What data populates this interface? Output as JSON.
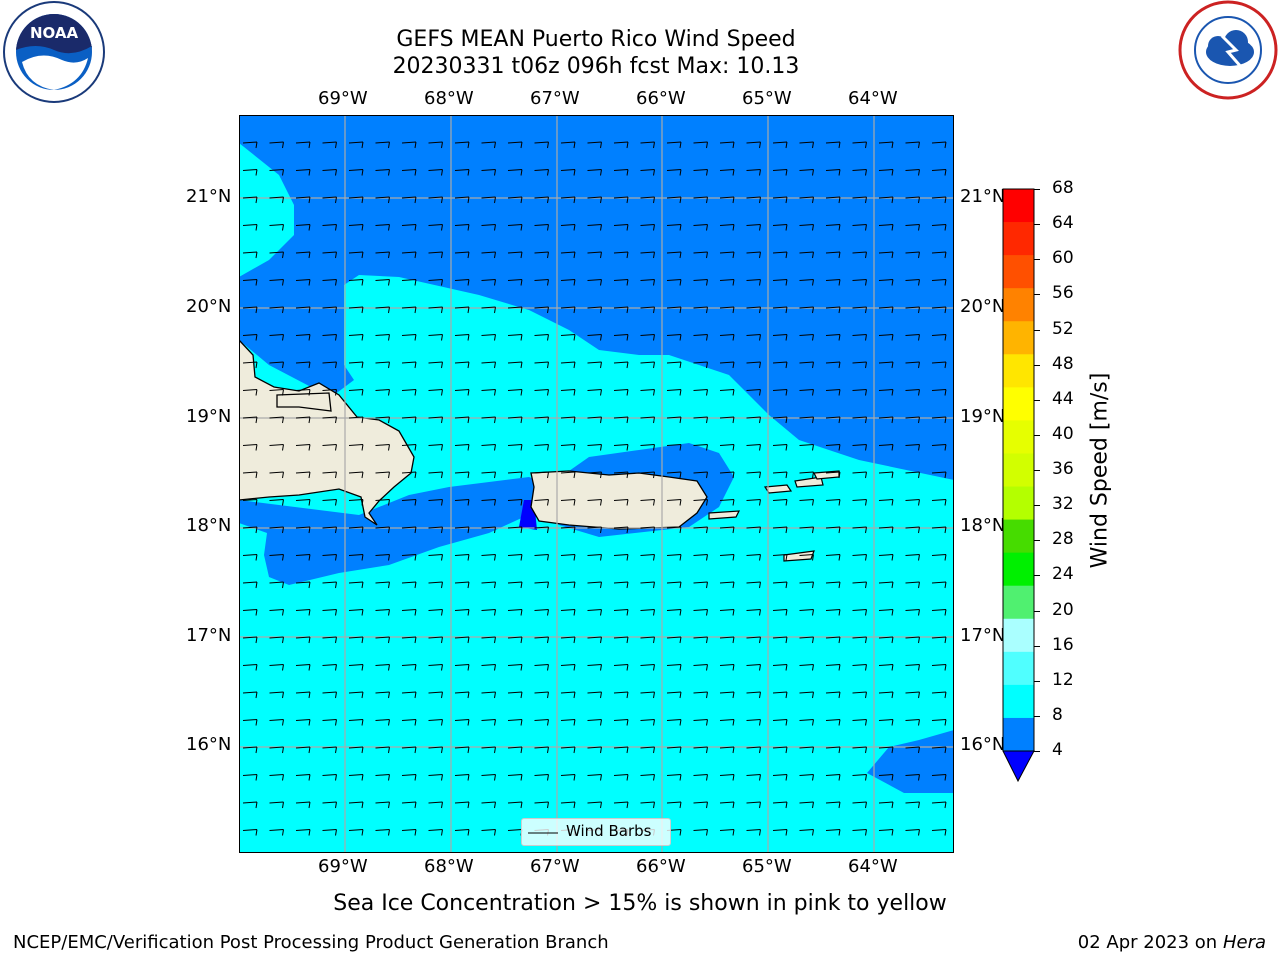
{
  "header": {
    "title_line1": "GEFS MEAN Puerto Rico Wind Speed",
    "title_line2": "20230331 t06z 096h fcst   Max: 10.13"
  },
  "logos": {
    "left": {
      "icon": "noaa-logo",
      "wordmark": "NOAA",
      "ring_text": "NATIONAL OCEANIC AND ATMOSPHERIC ADMINISTRATION · U.S. DEPARTMENT OF COMMERCE"
    },
    "right": {
      "icon": "nws-logo",
      "ring_text": "NATIONAL WEATHER SERVICE"
    }
  },
  "map": {
    "longitude_ticks": [
      "69°W",
      "68°W",
      "67°W",
      "66°W",
      "65°W",
      "64°W"
    ],
    "latitude_ticks": [
      "21°N",
      "20°N",
      "19°N",
      "18°N",
      "17°N",
      "16°N"
    ],
    "legend_label": "Wind Barbs"
  },
  "colorbar": {
    "label": "Wind Speed [m/s]",
    "ticks": [
      "68",
      "64",
      "60",
      "56",
      "52",
      "48",
      "44",
      "40",
      "36",
      "32",
      "28",
      "24",
      "20",
      "16",
      "12",
      "8",
      "4"
    ],
    "colors": [
      "#ff0000",
      "#ff2800",
      "#ff5000",
      "#ff8200",
      "#ffb400",
      "#ffe600",
      "#ffff00",
      "#e6ff00",
      "#d2ff00",
      "#b4ff00",
      "#46dc00",
      "#00f000",
      "#50f070",
      "#aaffff",
      "#50ffff",
      "#00ffff",
      "#0080ff"
    ],
    "under_color": "#0000ff"
  },
  "chart_data": {
    "type": "heatmap",
    "title": "GEFS MEAN Puerto Rico Wind Speed",
    "subtitle": "20230331 t06z 096h fcst   Max: 10.13",
    "x_ticks": [
      "69°W",
      "68°W",
      "67°W",
      "66°W",
      "65°W",
      "64°W"
    ],
    "y_ticks": [
      "21°N",
      "20°N",
      "19°N",
      "18°N",
      "17°N",
      "16°N"
    ],
    "colorbar_label": "Wind Speed [m/s]",
    "colorbar_levels": [
      4,
      8,
      12,
      16,
      20,
      24,
      28,
      32,
      36,
      40,
      44,
      48,
      52,
      56,
      60,
      64,
      68
    ],
    "max": 10.13,
    "legend": [
      "Wind Barbs"
    ],
    "colors": {
      "4-8": "#0080ff",
      "8-12": "#00ffff",
      "land": "#efecdc"
    }
  },
  "notes": {
    "sea_ice": "Sea Ice Concentration > 15% is shown in pink to yellow"
  },
  "footer": {
    "left": "NCEP/EMC/Verification Post Processing Product Generation Branch",
    "date": "02 Apr 2023 on ",
    "machine": "Hera"
  }
}
